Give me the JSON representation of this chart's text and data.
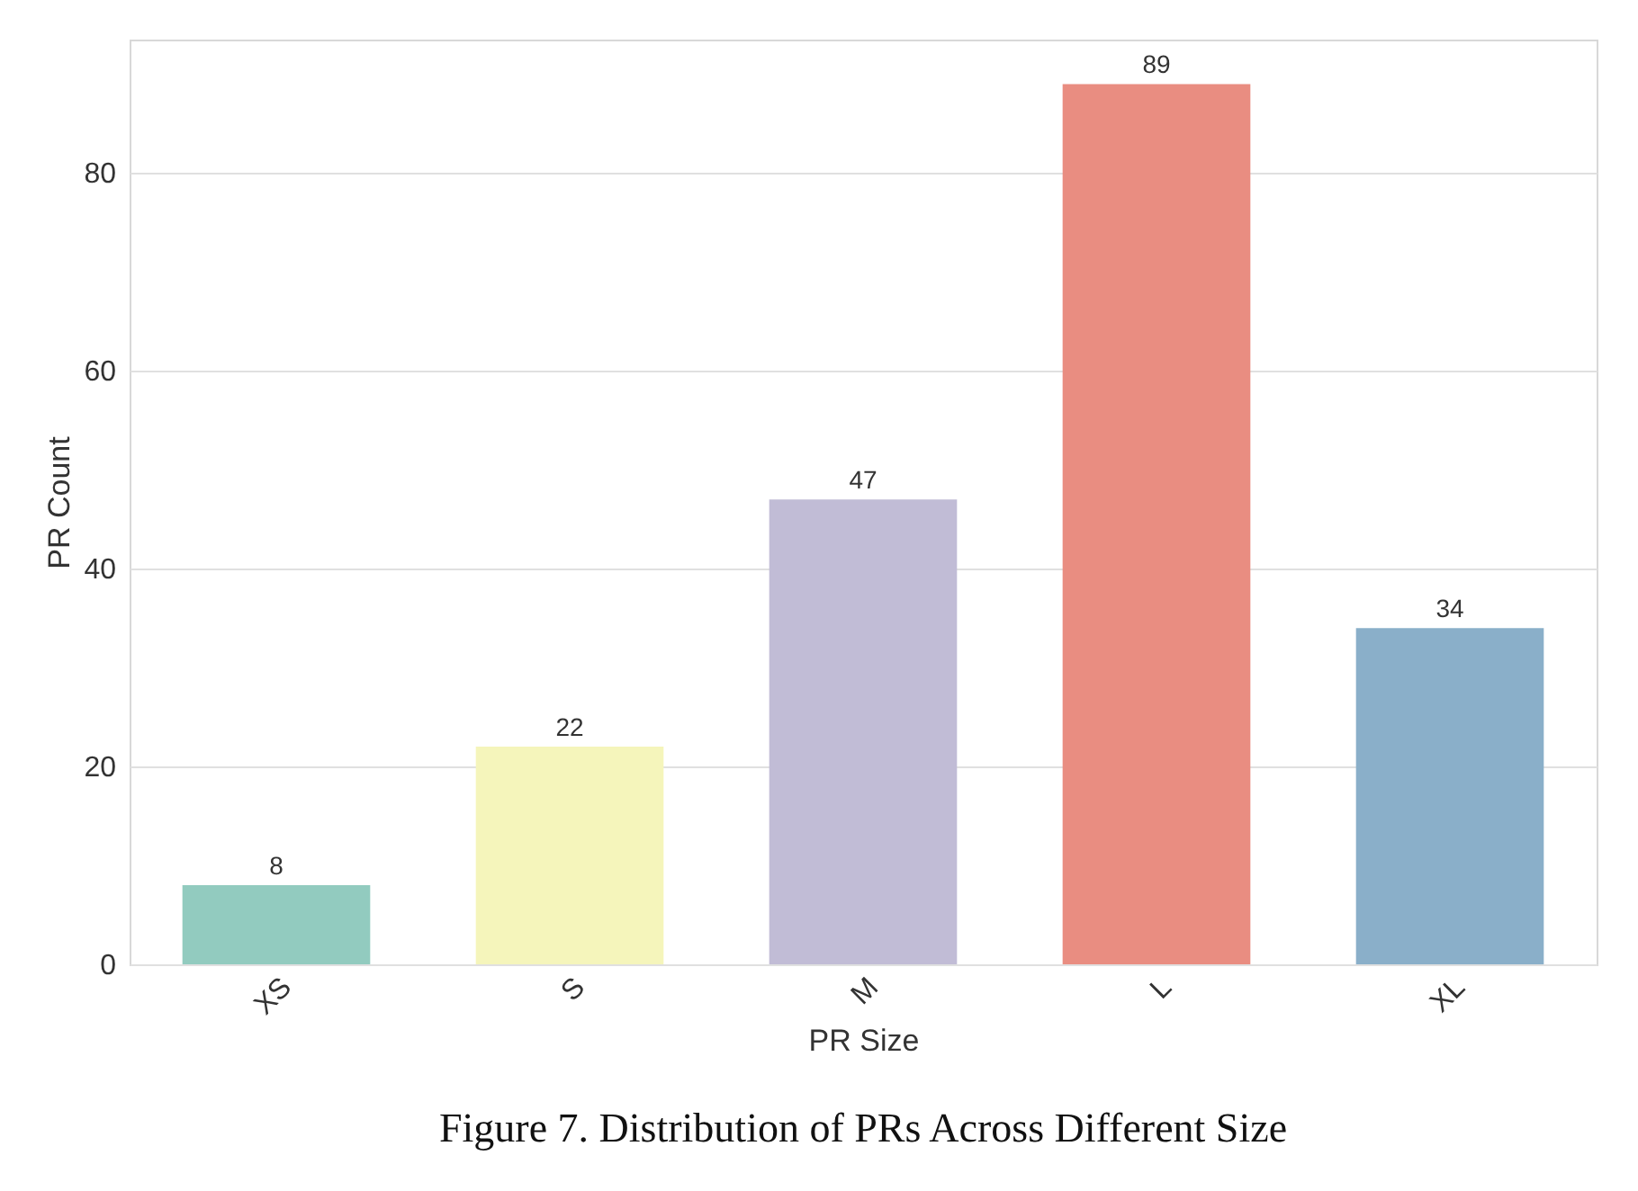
{
  "chart_data": {
    "type": "bar",
    "title": "Figure 7. Distribution of PRs Across Different Size",
    "xlabel": "PR Size",
    "ylabel": "PR Count",
    "categories": [
      "XS",
      "S",
      "M",
      "L",
      "XL"
    ],
    "values": [
      8,
      22,
      47,
      89,
      34
    ],
    "colors": [
      "#92cbbf",
      "#f5f5bb",
      "#c1bcd6",
      "#e98d81",
      "#8aafc9"
    ],
    "ylim": [
      0,
      93.5
    ],
    "yticks": [
      0,
      20,
      40,
      60,
      80
    ],
    "grid": "y",
    "data_labels": true
  }
}
